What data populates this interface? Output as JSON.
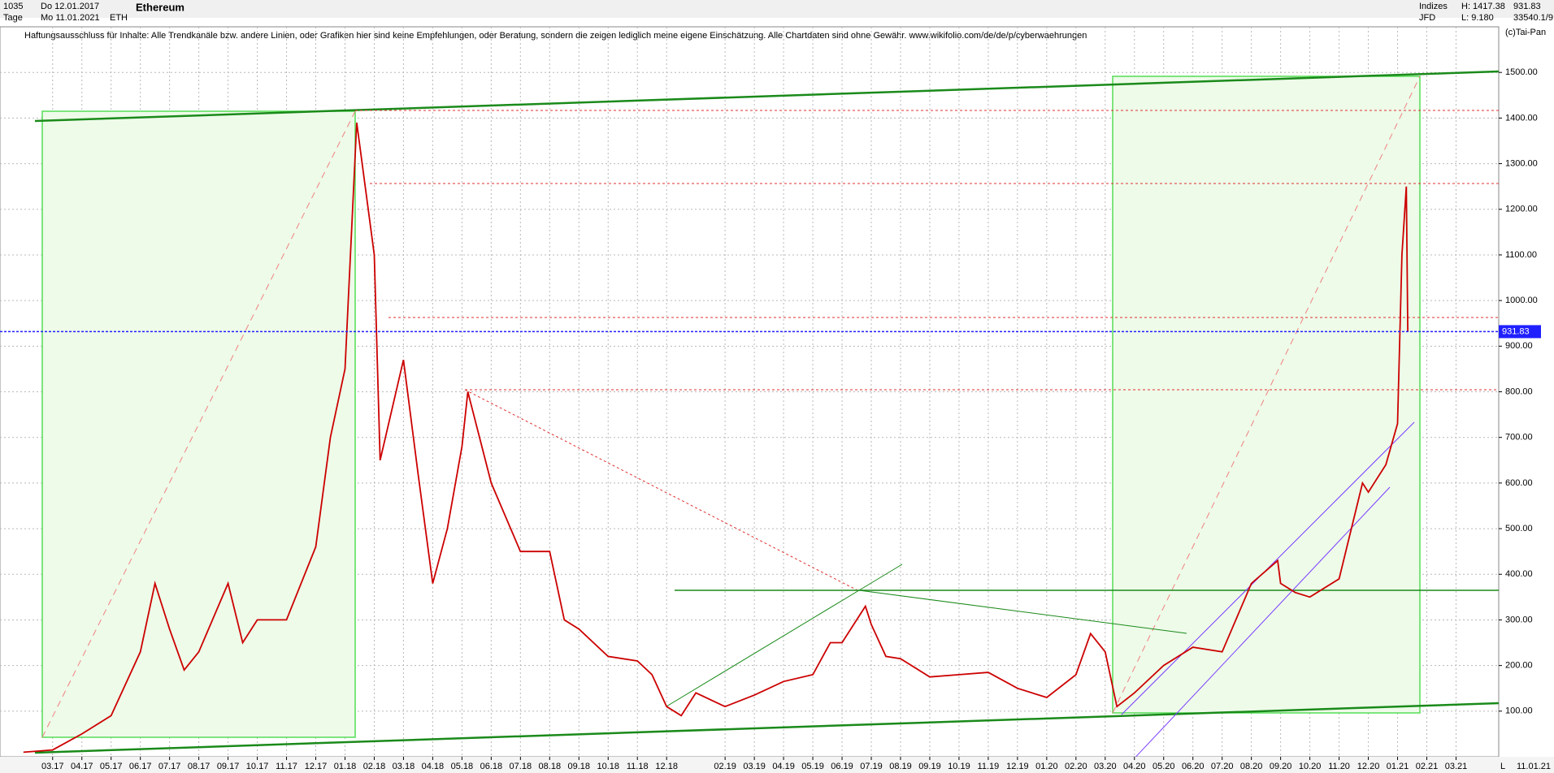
{
  "header": {
    "count": "1035",
    "period": "Tage",
    "start_date": "Do 12.01.2017",
    "end_date": "Mo 11.01.2021",
    "symbol": "ETH",
    "group": "Indizes",
    "source": "JFD",
    "high": "H: 1417.38",
    "low": "L: 9.180",
    "extra": "33540.1/9",
    "copyright": "(c)Tai-Pan",
    "disclaimer": "Haftungsausschluss für Inhalte: Alle Trendkanäle bzw. andere Linien, oder Grafiken hier sind keine Empfehlungen, oder Beratung, sondern die zeigen lediglich meine eigene Einschätzung. Alle Chartdaten sind ohne Gewähr.  www.wikifolio.com/de/de/p/cyberwaehrungen",
    "cursor_date": "11.01.21",
    "axis_mode": "L"
  },
  "chart_data": {
    "type": "line",
    "title": "Ethereum",
    "x": [
      2,
      3,
      4,
      5,
      6,
      6.5,
      7,
      7.5,
      8,
      9,
      9.5,
      10,
      11,
      12,
      12.5,
      13,
      13.4,
      14,
      14.2,
      15,
      15.5,
      16,
      16.5,
      17,
      17.2,
      18,
      19,
      20,
      20.5,
      21,
      22,
      23,
      23.5,
      24,
      24.5,
      25,
      26,
      27,
      28,
      29,
      29.6,
      30,
      30.8,
      31,
      31.5,
      32,
      33,
      34,
      35,
      36,
      37,
      38,
      38.5,
      39,
      39.4,
      40,
      41,
      42,
      43,
      44,
      44.9,
      45,
      45.5,
      46,
      47,
      47.8,
      48,
      48.6,
      49,
      49.15,
      49.3,
      49.35
    ],
    "series": [
      {
        "name": "ETH",
        "color": "#cc0000",
        "values": [
          10,
          15,
          50,
          90,
          230,
          380,
          280,
          190,
          230,
          380,
          250,
          300,
          300,
          460,
          700,
          850,
          1390,
          1100,
          650,
          870,
          620,
          380,
          500,
          680,
          800,
          600,
          450,
          450,
          300,
          280,
          220,
          210,
          180,
          110,
          90,
          140,
          110,
          135,
          165,
          180,
          250,
          250,
          330,
          290,
          220,
          215,
          175,
          180,
          185,
          150,
          130,
          180,
          270,
          230,
          110,
          140,
          200,
          240,
          230,
          380,
          430,
          380,
          360,
          350,
          390,
          600,
          580,
          640,
          730,
          1100,
          1250,
          931.83
        ]
      }
    ],
    "xlim": [
      1.2,
      52.46
    ],
    "xticks": [
      {
        "value": 3,
        "label": "03.17"
      },
      {
        "value": 4,
        "label": "04.17"
      },
      {
        "value": 5,
        "label": "05.17"
      },
      {
        "value": 6,
        "label": "06.17"
      },
      {
        "value": 7,
        "label": "07.17"
      },
      {
        "value": 8,
        "label": "08.17"
      },
      {
        "value": 9,
        "label": "09.17"
      },
      {
        "value": 10,
        "label": "10.17"
      },
      {
        "value": 11,
        "label": "11.17"
      },
      {
        "value": 12,
        "label": "12.17"
      },
      {
        "value": 13,
        "label": "01.18"
      },
      {
        "value": 14,
        "label": "02.18"
      },
      {
        "value": 15,
        "label": "03.18"
      },
      {
        "value": 16,
        "label": "04.18"
      },
      {
        "value": 17,
        "label": "05.18"
      },
      {
        "value": 18,
        "label": "06.18"
      },
      {
        "value": 19,
        "label": "07.18"
      },
      {
        "value": 20,
        "label": "08.18"
      },
      {
        "value": 21,
        "label": "09.18"
      },
      {
        "value": 22,
        "label": "10.18"
      },
      {
        "value": 23,
        "label": "11.18"
      },
      {
        "value": 24,
        "label": "12.18"
      },
      {
        "value": 26,
        "label": "02.19"
      },
      {
        "value": 27,
        "label": "03.19"
      },
      {
        "value": 28,
        "label": "04.19"
      },
      {
        "value": 29,
        "label": "05.19"
      },
      {
        "value": 30,
        "label": "06.19"
      },
      {
        "value": 31,
        "label": "07.19"
      },
      {
        "value": 32,
        "label": "08.19"
      },
      {
        "value": 33,
        "label": "09.19"
      },
      {
        "value": 34,
        "label": "10.19"
      },
      {
        "value": 35,
        "label": "11.19"
      },
      {
        "value": 36,
        "label": "12.19"
      },
      {
        "value": 37,
        "label": "01.20"
      },
      {
        "value": 38,
        "label": "02.20"
      },
      {
        "value": 39,
        "label": "03.20"
      },
      {
        "value": 40,
        "label": "04.20"
      },
      {
        "value": 41,
        "label": "05.20"
      },
      {
        "value": 42,
        "label": "06.20"
      },
      {
        "value": 43,
        "label": "07.20"
      },
      {
        "value": 44,
        "label": "08.20"
      },
      {
        "value": 45,
        "label": "09.20"
      },
      {
        "value": 46,
        "label": "10.20"
      },
      {
        "value": 47,
        "label": "11.20"
      },
      {
        "value": 48,
        "label": "12.20"
      },
      {
        "value": 49,
        "label": "01.21"
      },
      {
        "value": 50,
        "label": "02.21"
      },
      {
        "value": 51,
        "label": "03.21"
      }
    ],
    "ylim": [
      0,
      1600
    ],
    "yticks": [
      {
        "value": 100,
        "label": "100.00"
      },
      {
        "value": 200,
        "label": "200.00"
      },
      {
        "value": 300,
        "label": "300.00"
      },
      {
        "value": 400,
        "label": "400.00"
      },
      {
        "value": 500,
        "label": "500.00"
      },
      {
        "value": 600,
        "label": "600.00"
      },
      {
        "value": 700,
        "label": "700.00"
      },
      {
        "value": 800,
        "label": "800.00"
      },
      {
        "value": 900,
        "label": "900.00"
      },
      {
        "value": 1000,
        "label": "1000.00"
      },
      {
        "value": 1100,
        "label": "1100.00"
      },
      {
        "value": 1200,
        "label": "1200.00"
      },
      {
        "value": 1300,
        "label": "1300.00"
      },
      {
        "value": 1400,
        "label": "1400.00"
      },
      {
        "value": 1500,
        "label": "1500.00"
      }
    ],
    "grid": true
  }
}
